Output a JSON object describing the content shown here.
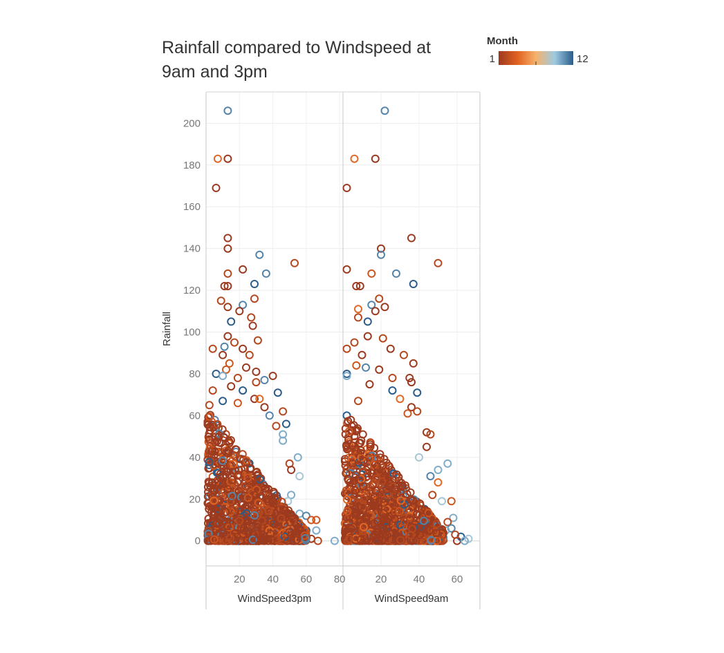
{
  "title": "Rainfall compared to Windspeed at 9am and 3pm",
  "legend": {
    "title": "Month",
    "min_label": "1",
    "max_label": "12",
    "colors": [
      "#9c3a1f",
      "#e0611f",
      "#f6b26b",
      "#9ecae1",
      "#2b5c8a"
    ]
  },
  "chart_data": {
    "type": "scatter",
    "title": "Rainfall compared to Windspeed at 9am and 3pm",
    "ylabel": "Rainfall",
    "ylim": [
      -12,
      215
    ],
    "yticks": [
      0,
      20,
      40,
      60,
      80,
      100,
      120,
      140,
      160,
      180,
      200
    ],
    "grid": true,
    "color_field": "Month",
    "color_range": [
      1,
      12
    ],
    "panels": [
      {
        "xlabel": "WindSpeed3pm",
        "xlim": [
          0,
          82
        ],
        "xticks": [
          20,
          40,
          60,
          80
        ],
        "points": [
          {
            "x": 13,
            "y": 206,
            "m": 11
          },
          {
            "x": 7,
            "y": 183,
            "m": 4
          },
          {
            "x": 13,
            "y": 183,
            "m": 1
          },
          {
            "x": 6,
            "y": 169,
            "m": 1
          },
          {
            "x": 13,
            "y": 145,
            "m": 1
          },
          {
            "x": 13,
            "y": 140,
            "m": 1
          },
          {
            "x": 32,
            "y": 137,
            "m": 11
          },
          {
            "x": 53,
            "y": 133,
            "m": 2
          },
          {
            "x": 22,
            "y": 130,
            "m": 1
          },
          {
            "x": 13,
            "y": 128,
            "m": 2
          },
          {
            "x": 36,
            "y": 128,
            "m": 11
          },
          {
            "x": 29,
            "y": 123,
            "m": 12
          },
          {
            "x": 11,
            "y": 122,
            "m": 1
          },
          {
            "x": 13,
            "y": 122,
            "m": 1
          },
          {
            "x": 29,
            "y": 116,
            "m": 2
          },
          {
            "x": 9,
            "y": 115,
            "m": 2
          },
          {
            "x": 22,
            "y": 113,
            "m": 11
          },
          {
            "x": 13,
            "y": 112,
            "m": 1
          },
          {
            "x": 20,
            "y": 110,
            "m": 1
          },
          {
            "x": 27,
            "y": 107,
            "m": 2
          },
          {
            "x": 15,
            "y": 105,
            "m": 12
          },
          {
            "x": 28,
            "y": 103,
            "m": 1
          },
          {
            "x": 13,
            "y": 98,
            "m": 1
          },
          {
            "x": 31,
            "y": 96,
            "m": 2
          },
          {
            "x": 17,
            "y": 95,
            "m": 2
          },
          {
            "x": 11,
            "y": 93,
            "m": 11
          },
          {
            "x": 22,
            "y": 92,
            "m": 1
          },
          {
            "x": 4,
            "y": 92,
            "m": 2
          },
          {
            "x": 26,
            "y": 89,
            "m": 2
          },
          {
            "x": 10,
            "y": 89,
            "m": 1
          },
          {
            "x": 14,
            "y": 85,
            "m": 3
          },
          {
            "x": 24,
            "y": 83,
            "m": 1
          },
          {
            "x": 12,
            "y": 82,
            "m": 3
          },
          {
            "x": 6,
            "y": 80,
            "m": 12
          },
          {
            "x": 30,
            "y": 81,
            "m": 1
          },
          {
            "x": 10,
            "y": 79,
            "m": 10
          },
          {
            "x": 40,
            "y": 79,
            "m": 1
          },
          {
            "x": 19,
            "y": 78,
            "m": 2
          },
          {
            "x": 35,
            "y": 77,
            "m": 11
          },
          {
            "x": 30,
            "y": 76,
            "m": 2
          },
          {
            "x": 15,
            "y": 74,
            "m": 1
          },
          {
            "x": 4,
            "y": 72,
            "m": 2
          },
          {
            "x": 22,
            "y": 72,
            "m": 12
          },
          {
            "x": 43,
            "y": 71,
            "m": 12
          },
          {
            "x": 10,
            "y": 67,
            "m": 12
          },
          {
            "x": 29,
            "y": 68,
            "m": 1
          },
          {
            "x": 32,
            "y": 68,
            "m": 4
          },
          {
            "x": 2,
            "y": 65,
            "m": 2
          },
          {
            "x": 19,
            "y": 66,
            "m": 3
          },
          {
            "x": 35,
            "y": 64,
            "m": 1
          },
          {
            "x": 46,
            "y": 62,
            "m": 2
          },
          {
            "x": 38,
            "y": 60,
            "m": 11
          },
          {
            "x": 48,
            "y": 56,
            "m": 12
          },
          {
            "x": 42,
            "y": 55,
            "m": 2
          },
          {
            "x": 46,
            "y": 51,
            "m": 10
          },
          {
            "x": 46,
            "y": 48,
            "m": 10
          },
          {
            "x": 55,
            "y": 40,
            "m": 10
          },
          {
            "x": 50,
            "y": 37,
            "m": 2
          },
          {
            "x": 51,
            "y": 34,
            "m": 1
          },
          {
            "x": 56,
            "y": 31,
            "m": 9
          },
          {
            "x": 51,
            "y": 22,
            "m": 10
          },
          {
            "x": 49,
            "y": 19,
            "m": 9
          },
          {
            "x": 56,
            "y": 13,
            "m": 10
          },
          {
            "x": 60,
            "y": 12,
            "m": 11
          },
          {
            "x": 63,
            "y": 10,
            "m": 3
          },
          {
            "x": 66,
            "y": 10,
            "m": 3
          },
          {
            "x": 58,
            "y": 6,
            "m": 11
          },
          {
            "x": 60,
            "y": 5,
            "m": 12
          },
          {
            "x": 66,
            "y": 5,
            "m": 10
          },
          {
            "x": 57,
            "y": 2,
            "m": 1
          },
          {
            "x": 63,
            "y": 1,
            "m": 1
          },
          {
            "x": 67,
            "y": 0,
            "m": 2
          },
          {
            "x": 77,
            "y": 0,
            "m": 10
          },
          {
            "x": 60,
            "y": 2,
            "m": 2
          },
          {
            "x": 54,
            "y": 3,
            "m": 2
          }
        ]
      },
      {
        "xlabel": "WindSpeed9am",
        "xlim": [
          0,
          72
        ],
        "xticks": [
          20,
          40,
          60
        ],
        "points": [
          {
            "x": 22,
            "y": 206,
            "m": 11
          },
          {
            "x": 6,
            "y": 183,
            "m": 4
          },
          {
            "x": 17,
            "y": 183,
            "m": 1
          },
          {
            "x": 2,
            "y": 169,
            "m": 1
          },
          {
            "x": 36,
            "y": 145,
            "m": 1
          },
          {
            "x": 20,
            "y": 140,
            "m": 1
          },
          {
            "x": 20,
            "y": 137,
            "m": 11
          },
          {
            "x": 50,
            "y": 133,
            "m": 2
          },
          {
            "x": 2,
            "y": 130,
            "m": 1
          },
          {
            "x": 15,
            "y": 128,
            "m": 3
          },
          {
            "x": 28,
            "y": 128,
            "m": 11
          },
          {
            "x": 37,
            "y": 123,
            "m": 12
          },
          {
            "x": 7,
            "y": 122,
            "m": 1
          },
          {
            "x": 9,
            "y": 122,
            "m": 1
          },
          {
            "x": 19,
            "y": 116,
            "m": 2
          },
          {
            "x": 15,
            "y": 113,
            "m": 11
          },
          {
            "x": 22,
            "y": 112,
            "m": 1
          },
          {
            "x": 8,
            "y": 111,
            "m": 4
          },
          {
            "x": 17,
            "y": 110,
            "m": 1
          },
          {
            "x": 13,
            "y": 105,
            "m": 12
          },
          {
            "x": 8,
            "y": 107,
            "m": 2
          },
          {
            "x": 13,
            "y": 98,
            "m": 1
          },
          {
            "x": 21,
            "y": 97,
            "m": 2
          },
          {
            "x": 6,
            "y": 95,
            "m": 2
          },
          {
            "x": 25,
            "y": 92,
            "m": 1
          },
          {
            "x": 2,
            "y": 92,
            "m": 2
          },
          {
            "x": 10,
            "y": 89,
            "m": 1
          },
          {
            "x": 32,
            "y": 89,
            "m": 2
          },
          {
            "x": 37,
            "y": 85,
            "m": 1
          },
          {
            "x": 7,
            "y": 84,
            "m": 3
          },
          {
            "x": 12,
            "y": 83,
            "m": 11
          },
          {
            "x": 19,
            "y": 82,
            "m": 1
          },
          {
            "x": 2,
            "y": 80,
            "m": 12
          },
          {
            "x": 26,
            "y": 78,
            "m": 2
          },
          {
            "x": 35,
            "y": 78,
            "m": 1
          },
          {
            "x": 2,
            "y": 79,
            "m": 10
          },
          {
            "x": 36,
            "y": 76,
            "m": 1
          },
          {
            "x": 14,
            "y": 75,
            "m": 1
          },
          {
            "x": 26,
            "y": 72,
            "m": 12
          },
          {
            "x": 39,
            "y": 71,
            "m": 12
          },
          {
            "x": 30,
            "y": 68,
            "m": 4
          },
          {
            "x": 8,
            "y": 67,
            "m": 2
          },
          {
            "x": 36,
            "y": 64,
            "m": 1
          },
          {
            "x": 39,
            "y": 62,
            "m": 2
          },
          {
            "x": 2,
            "y": 60,
            "m": 12
          },
          {
            "x": 34,
            "y": 61,
            "m": 3
          },
          {
            "x": 44,
            "y": 52,
            "m": 1
          },
          {
            "x": 46,
            "y": 51,
            "m": 2
          },
          {
            "x": 44,
            "y": 45,
            "m": 1
          },
          {
            "x": 55,
            "y": 37,
            "m": 10
          },
          {
            "x": 40,
            "y": 40,
            "m": 9
          },
          {
            "x": 50,
            "y": 34,
            "m": 10
          },
          {
            "x": 46,
            "y": 31,
            "m": 11
          },
          {
            "x": 50,
            "y": 28,
            "m": 4
          },
          {
            "x": 47,
            "y": 22,
            "m": 2
          },
          {
            "x": 57,
            "y": 19,
            "m": 3
          },
          {
            "x": 52,
            "y": 19,
            "m": 9
          },
          {
            "x": 58,
            "y": 11,
            "m": 10
          },
          {
            "x": 55,
            "y": 9,
            "m": 2
          },
          {
            "x": 57,
            "y": 6,
            "m": 11
          },
          {
            "x": 54,
            "y": 5,
            "m": 10
          },
          {
            "x": 62,
            "y": 2,
            "m": 12
          },
          {
            "x": 66,
            "y": 1,
            "m": 9
          },
          {
            "x": 60,
            "y": 0,
            "m": 1
          },
          {
            "x": 64,
            "y": 0,
            "m": 10
          },
          {
            "x": 59,
            "y": 3,
            "m": 2
          }
        ]
      }
    ]
  }
}
